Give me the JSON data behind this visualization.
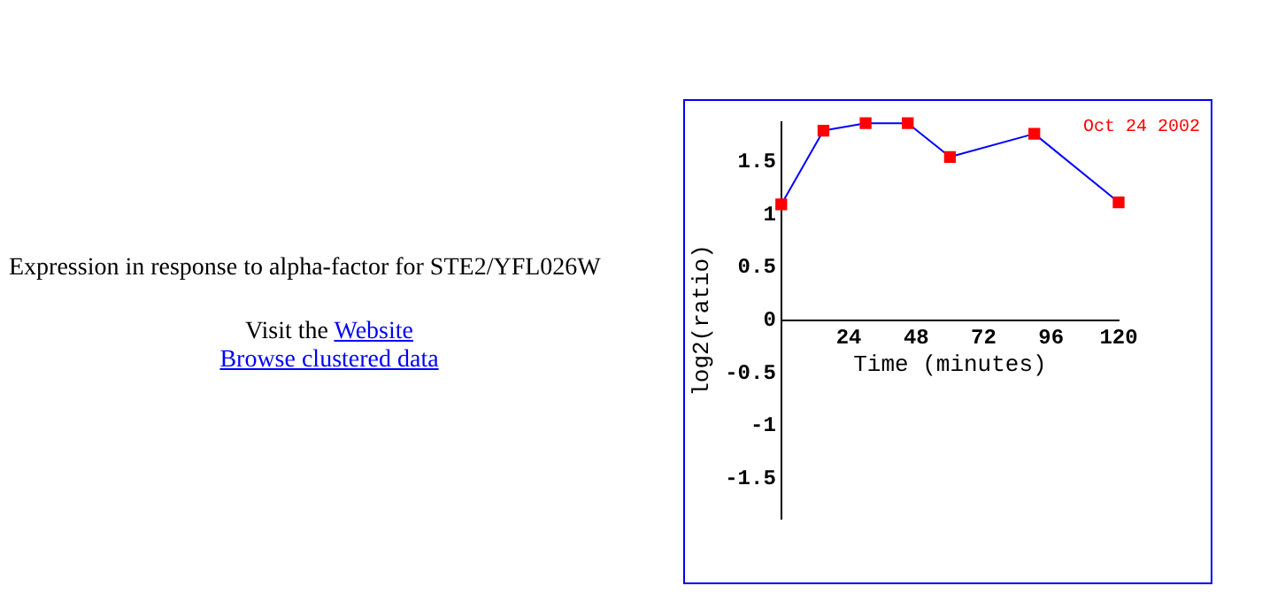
{
  "chart_data": {
    "type": "line",
    "title": "Expression in response to alpha-factor for STE2/YFL026W",
    "xlabel": "Time (minutes)",
    "ylabel": "log2(ratio)",
    "annotations": [
      "Visit the Website",
      "Browse clustered data",
      "Oct 24 2002"
    ],
    "x": [
      0,
      15,
      30,
      45,
      60,
      90,
      120
    ],
    "series": [
      {
        "color": "#0000ff",
        "colors": [
          "#ff0000",
          "#ff0000",
          "#ff0000",
          "#ff0000",
          "#ff0000",
          "#ff0000",
          "#ff0000"
        ],
        "values": [
          1.1,
          1.8,
          1.87,
          1.87,
          1.55,
          1.77,
          1.12
        ]
      }
    ],
    "xlim": [
      0,
      120
    ],
    "xticks": [
      24,
      48,
      72,
      96,
      120
    ],
    "ylim": [
      -1.88,
      1.88
    ],
    "yticks": [
      -1.5,
      -1,
      -0.5,
      0,
      0.5,
      1,
      1.5
    ],
    "grid": false,
    "legend": false,
    "marker": "square",
    "line_style": "solid"
  }
}
